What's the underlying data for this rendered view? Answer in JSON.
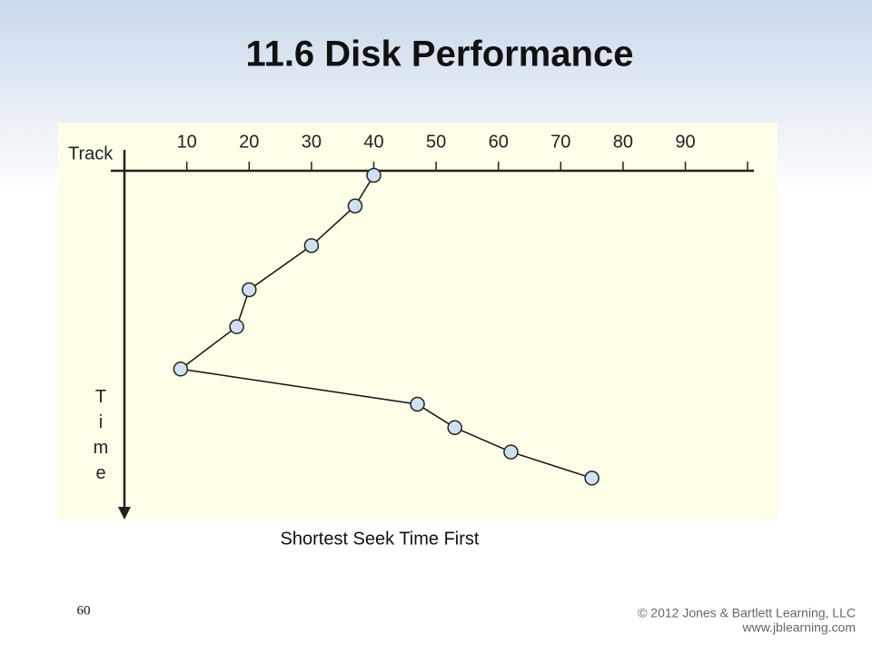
{
  "title": "11.6 Disk Performance",
  "chart_data": {
    "type": "line",
    "x_label": "Track",
    "y_label": "Time",
    "x": [
      40,
      37,
      30,
      20,
      18,
      9,
      47,
      53,
      62,
      75
    ],
    "series": [
      {
        "color": "#cfe0f0",
        "values": [
          0,
          34,
          78,
          127,
          168,
          215,
          254,
          280,
          307,
          336
        ]
      }
    ],
    "xlim": [
      -2.2,
      101
    ],
    "xticks": [
      10,
      20,
      30,
      40,
      50,
      60,
      70,
      80,
      90
    ],
    "ylim": [
      0,
      380
    ]
  },
  "caption": "Shortest Seek Time First",
  "page_number": "60",
  "copyright": "© 2012 Jones & Bartlett Learning, LLC",
  "website": "www.jblearning.com"
}
